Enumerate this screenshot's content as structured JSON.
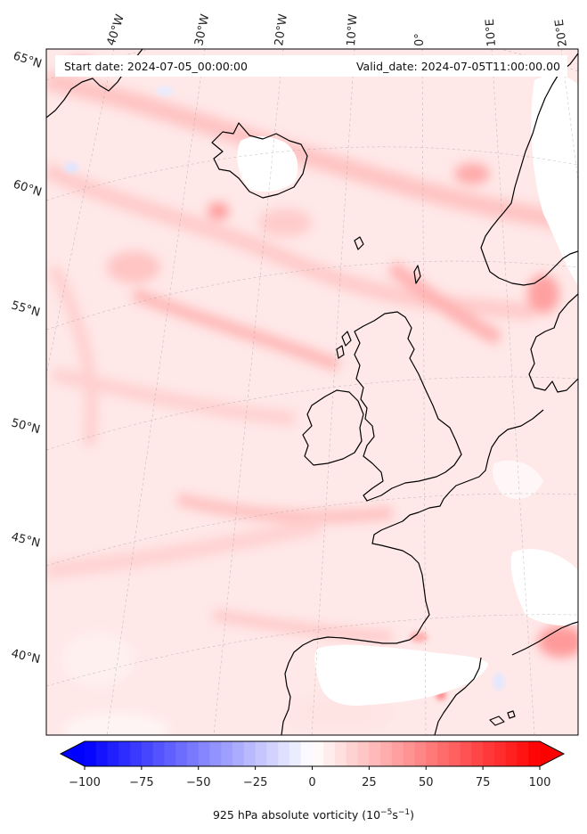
{
  "map": {
    "header": {
      "start_date": "Start date: 2024-07-05_00:00:00",
      "valid_date": "Valid_date: 2024-07-05T11:00:00.00"
    },
    "longitude_labels": [
      "40°W",
      "30°W",
      "20°W",
      "10°W",
      "0°",
      "10°E",
      "20°E"
    ],
    "latitude_labels": [
      "65°N",
      "60°N",
      "55°N",
      "50°N",
      "45°N",
      "40°N"
    ],
    "field": "925 hPa absolute vorticity"
  },
  "colorbar": {
    "label": "925 hPa absolute vorticity (10⁻⁵s⁻¹)",
    "ticks": [
      "−100",
      "−75",
      "−50",
      "−25",
      "0",
      "25",
      "50",
      "75",
      "100"
    ],
    "min": -100,
    "max": 100,
    "levels": 41,
    "colors": {
      "negative": "#0000ff",
      "zero": "#ffffff",
      "positive": "#ff0000"
    }
  }
}
